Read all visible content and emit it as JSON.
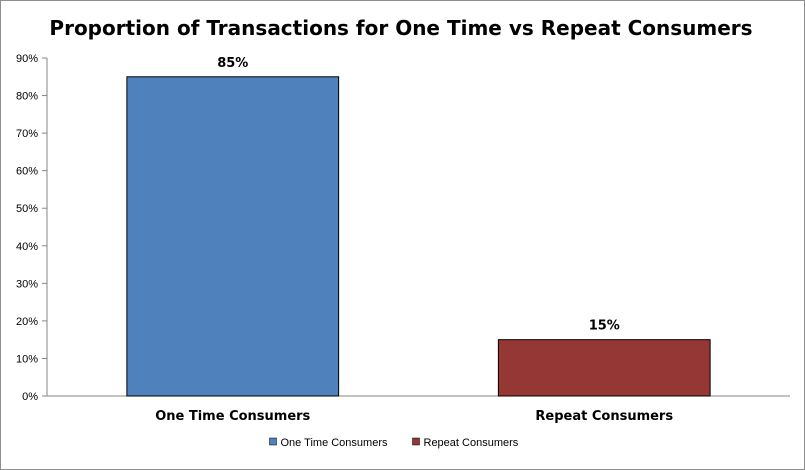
{
  "chart_data": {
    "type": "bar",
    "title": "Proportion of Transactions for One Time vs Repeat Consumers",
    "categories": [
      "One Time Consumers",
      "Repeat Consumers"
    ],
    "values": [
      85,
      15
    ],
    "data_labels": [
      "85%",
      "15%"
    ],
    "colors": [
      "#4f81bd",
      "#953735"
    ],
    "ylim": [
      0,
      90
    ],
    "yticks": [
      0,
      10,
      20,
      30,
      40,
      50,
      60,
      70,
      80,
      90
    ],
    "ytick_labels": [
      "0%",
      "10%",
      "20%",
      "30%",
      "40%",
      "50%",
      "60%",
      "70%",
      "80%",
      "90%"
    ],
    "grid": false,
    "legend": {
      "position": "bottom",
      "entries": [
        "One Time Consumers",
        "Repeat Consumers"
      ]
    }
  }
}
